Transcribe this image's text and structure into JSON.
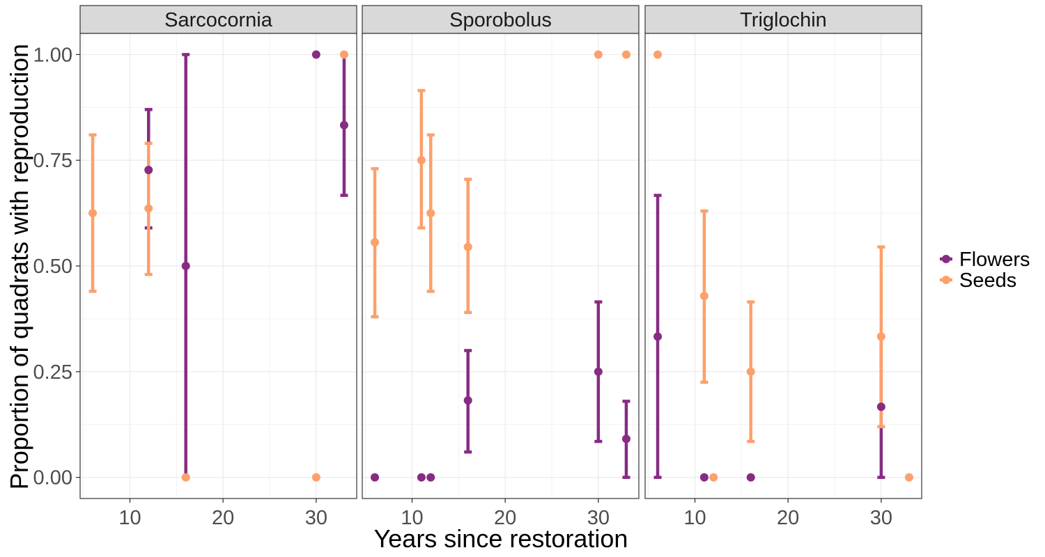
{
  "chart_data": {
    "type": "scatter",
    "facet_by": "species",
    "panels": [
      {
        "name": "Sarcocornia",
        "points": [
          {
            "series": "Seeds",
            "x": 6,
            "y": 0.625,
            "ymin": 0.44,
            "ymax": 0.81
          },
          {
            "series": "Flowers",
            "x": 12,
            "y": 0.727,
            "ymin": 0.59,
            "ymax": 0.87
          },
          {
            "series": "Seeds",
            "x": 12,
            "y": 0.636,
            "ymin": 0.48,
            "ymax": 0.79
          },
          {
            "series": "Flowers",
            "x": 16,
            "y": 0.5,
            "ymin": 0.0,
            "ymax": 1.0
          },
          {
            "series": "Seeds",
            "x": 16,
            "y": 0.0
          },
          {
            "series": "Flowers",
            "x": 30,
            "y": 1.0
          },
          {
            "series": "Seeds",
            "x": 30,
            "y": 0.0
          },
          {
            "series": "Flowers",
            "x": 33,
            "y": 0.833,
            "ymin": 0.667,
            "ymax": 1.0
          },
          {
            "series": "Seeds",
            "x": 33,
            "y": 1.0
          }
        ]
      },
      {
        "name": "Sporobolus",
        "points": [
          {
            "series": "Seeds",
            "x": 6,
            "y": 0.556,
            "ymin": 0.38,
            "ymax": 0.73
          },
          {
            "series": "Flowers",
            "x": 6,
            "y": 0.0
          },
          {
            "series": "Seeds",
            "x": 11,
            "y": 0.75,
            "ymin": 0.59,
            "ymax": 0.915
          },
          {
            "series": "Flowers",
            "x": 11,
            "y": 0.0
          },
          {
            "series": "Seeds",
            "x": 12,
            "y": 0.625,
            "ymin": 0.44,
            "ymax": 0.81
          },
          {
            "series": "Flowers",
            "x": 12,
            "y": 0.0
          },
          {
            "series": "Seeds",
            "x": 16,
            "y": 0.545,
            "ymin": 0.39,
            "ymax": 0.705
          },
          {
            "series": "Flowers",
            "x": 16,
            "y": 0.182,
            "ymin": 0.06,
            "ymax": 0.3
          },
          {
            "series": "Seeds",
            "x": 30,
            "y": 1.0
          },
          {
            "series": "Flowers",
            "x": 30,
            "y": 0.25,
            "ymin": 0.085,
            "ymax": 0.415
          },
          {
            "series": "Seeds",
            "x": 33,
            "y": 1.0
          },
          {
            "series": "Flowers",
            "x": 33,
            "y": 0.091,
            "ymin": 0.0,
            "ymax": 0.18
          }
        ]
      },
      {
        "name": "Triglochin",
        "points": [
          {
            "series": "Seeds",
            "x": 6,
            "y": 1.0
          },
          {
            "series": "Flowers",
            "x": 6,
            "y": 0.333,
            "ymin": 0.0,
            "ymax": 0.667
          },
          {
            "series": "Seeds",
            "x": 11,
            "y": 0.429,
            "ymin": 0.225,
            "ymax": 0.63
          },
          {
            "series": "Flowers",
            "x": 11,
            "y": 0.0
          },
          {
            "series": "Seeds",
            "x": 12,
            "y": 0.0
          },
          {
            "series": "Seeds",
            "x": 16,
            "y": 0.25,
            "ymin": 0.085,
            "ymax": 0.415
          },
          {
            "series": "Flowers",
            "x": 16,
            "y": 0.0
          },
          {
            "series": "Flowers",
            "x": 30,
            "y": 0.167,
            "ymin": 0.0,
            "ymax": 0.333
          },
          {
            "series": "Seeds",
            "x": 30,
            "y": 0.333,
            "ymin": 0.12,
            "ymax": 0.545
          },
          {
            "series": "Seeds",
            "x": 33,
            "y": 0.0
          }
        ]
      }
    ],
    "series": [
      {
        "name": "Flowers",
        "color": "#862C82"
      },
      {
        "name": "Seeds",
        "color": "#FCA06C"
      }
    ],
    "xlabel": "Years since restoration",
    "ylabel": "Proportion of quadrats with reproduction",
    "xlim": [
      4.65,
      34.35
    ],
    "ylim": [
      -0.05,
      1.05
    ],
    "x_ticks": [
      10,
      20,
      30
    ],
    "y_ticks": [
      0.0,
      0.25,
      0.5,
      0.75,
      1.0
    ],
    "y_tick_labels": [
      "0.00",
      "0.25",
      "0.50",
      "0.75",
      "1.00"
    ],
    "grid": true,
    "legend_position": "right"
  }
}
